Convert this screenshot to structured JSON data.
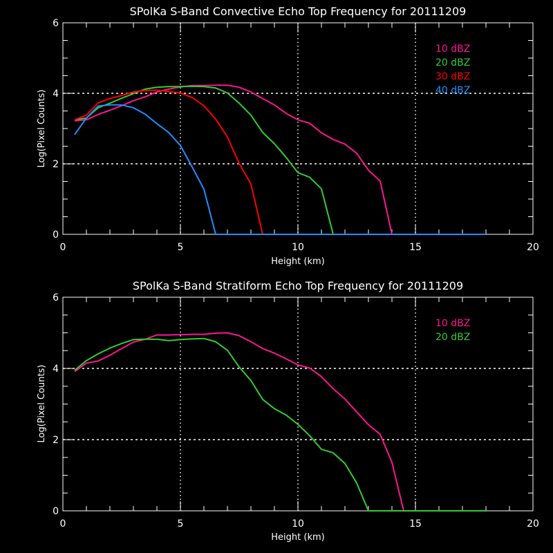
{
  "chart_data": [
    {
      "type": "line",
      "title": "SPolKa S-Band Convective Echo Top Frequency for 20111209",
      "xlabel": "Height (km)",
      "ylabel": "Log(Pixel Counts)",
      "xlim": [
        0,
        20
      ],
      "ylim": [
        0,
        6
      ],
      "xticks": [
        "0",
        "5",
        "10",
        "15",
        "20"
      ],
      "yticks": [
        "0",
        "2",
        "4",
        "6"
      ],
      "grid": "dotted at x=5,10,15 and y=2,4",
      "legend": "top-right",
      "x": [
        0.5,
        1,
        1.5,
        2,
        2.5,
        3,
        3.5,
        4,
        4.5,
        5,
        5.5,
        6,
        6.5,
        7,
        7.5,
        8,
        8.5,
        9,
        9.5,
        10,
        10.5,
        11,
        11.5,
        12,
        12.5,
        13,
        13.5,
        14,
        14.5,
        15,
        15.5,
        16,
        16.5,
        17,
        17.5,
        18
      ],
      "series": [
        {
          "name": "10 dBZ",
          "color": "#ff1493",
          "values": [
            3.22,
            3.25,
            3.4,
            3.52,
            3.65,
            3.79,
            3.9,
            4.04,
            4.12,
            4.18,
            4.22,
            4.22,
            4.23,
            4.23,
            4.17,
            4.04,
            3.85,
            3.67,
            3.43,
            3.25,
            3.15,
            2.88,
            2.69,
            2.56,
            2.3,
            1.82,
            1.51,
            0,
            0,
            0,
            0,
            0,
            0,
            0,
            0,
            0
          ]
        },
        {
          "name": "20 dBZ",
          "color": "#33cc33",
          "values": [
            3.25,
            3.3,
            3.59,
            3.72,
            3.86,
            3.99,
            4.12,
            4.17,
            4.19,
            4.19,
            4.2,
            4.19,
            4.15,
            4.01,
            3.72,
            3.38,
            2.89,
            2.57,
            2.18,
            1.75,
            1.62,
            1.29,
            0,
            0,
            0,
            0,
            0,
            0,
            0,
            0,
            0,
            0,
            0,
            0,
            0,
            0
          ]
        },
        {
          "name": "30 dBZ",
          "color": "#ff0000",
          "values": [
            3.25,
            3.38,
            3.73,
            3.85,
            3.94,
            4.04,
            4.08,
            4.09,
            4.05,
            4.01,
            3.88,
            3.65,
            3.27,
            2.76,
            2.01,
            1.43,
            0,
            0,
            0,
            0,
            0,
            0,
            0,
            0,
            0,
            0,
            0,
            0,
            0,
            0,
            0,
            0,
            0,
            0,
            0,
            0
          ]
        },
        {
          "name": "40 dBZ",
          "color": "#1e90ff",
          "values": [
            2.83,
            3.3,
            3.64,
            3.67,
            3.67,
            3.59,
            3.41,
            3.14,
            2.89,
            2.52,
            1.91,
            1.28,
            0,
            0,
            0,
            0,
            0,
            0,
            0,
            0,
            0,
            0,
            0,
            0,
            0,
            0,
            0,
            0,
            0,
            0,
            0,
            0,
            0,
            0,
            0,
            0
          ]
        }
      ]
    },
    {
      "type": "line",
      "title": "SPolKa S-Band Stratiform Echo Top Frequency for 20111209",
      "xlabel": "Height (km)",
      "ylabel": "Log(Pixel Counts)",
      "xlim": [
        0,
        20
      ],
      "ylim": [
        0,
        6
      ],
      "xticks": [
        "0",
        "5",
        "10",
        "15",
        "20"
      ],
      "yticks": [
        "0",
        "2",
        "4",
        "6"
      ],
      "grid": "dotted at x=5,10,15 and y=2,4",
      "legend": "top-right",
      "x": [
        0.5,
        1,
        1.5,
        2,
        2.5,
        3,
        3.5,
        4,
        4.5,
        5,
        5.5,
        6,
        6.5,
        7,
        7.5,
        8,
        8.5,
        9,
        9.5,
        10,
        10.5,
        11,
        11.5,
        12,
        12.5,
        13,
        13.5,
        14,
        14.5,
        15,
        15.5,
        16,
        16.5,
        17,
        17.5,
        18
      ],
      "series": [
        {
          "name": "10 dBZ",
          "color": "#ff1493",
          "values": [
            3.91,
            4.15,
            4.21,
            4.37,
            4.56,
            4.74,
            4.82,
            4.94,
            4.94,
            4.95,
            4.96,
            4.96,
            4.99,
            5.0,
            4.92,
            4.75,
            4.56,
            4.43,
            4.27,
            4.1,
            4.01,
            3.77,
            3.43,
            3.14,
            2.78,
            2.42,
            2.15,
            1.36,
            0,
            0,
            0,
            0,
            0,
            0,
            0,
            0
          ]
        },
        {
          "name": "20 dBZ",
          "color": "#33cc33",
          "values": [
            3.95,
            4.22,
            4.41,
            4.57,
            4.7,
            4.81,
            4.82,
            4.82,
            4.78,
            4.81,
            4.83,
            4.84,
            4.75,
            4.51,
            4.04,
            3.66,
            3.13,
            2.87,
            2.69,
            2.43,
            2.11,
            1.73,
            1.63,
            1.33,
            0.78,
            0,
            0,
            0,
            0,
            0,
            0,
            0,
            0,
            0,
            0,
            0
          ]
        }
      ]
    }
  ]
}
